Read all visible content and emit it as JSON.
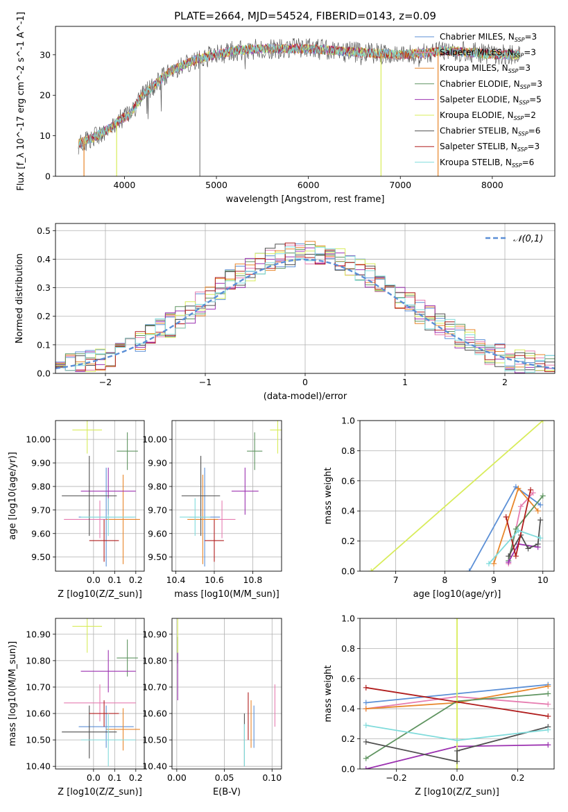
{
  "figure_title": "PLATE=2664, MJD=54524, FIBERID=0143, z=0.09",
  "colors": {
    "Chabrier MILES": "#5b8fd6",
    "Salpeter MILES": "#e67cb0",
    "Kroupa MILES": "#e8862a",
    "Chabrier ELODIE": "#5f9460",
    "Salpeter ELODIE": "#9b30b0",
    "Kroupa ELODIE": "#d8ec5a",
    "Chabrier STELIB": "#505050",
    "Salpeter STELIB": "#b01d1d",
    "Kroupa STELIB": "#7fdbdb",
    "normal": "#5b8fd6"
  },
  "chart_data": [
    {
      "id": "spectrum",
      "type": "line",
      "title": "PLATE=2664, MJD=54524, FIBERID=0143, z=0.09",
      "xlabel": "wavelength [Angstrom, rest frame]",
      "ylabel": "Flux [f_λ 10^-17 erg cm^-2 s^-1 A^-1]",
      "xlim": [
        3250,
        8680
      ],
      "ylim": [
        0,
        37
      ],
      "xticks": [
        4000,
        5000,
        6000,
        7000,
        8000
      ],
      "yticks": [
        0,
        10,
        20,
        30
      ],
      "legend_position": "upper right",
      "legend": [
        {
          "model": "Chabrier MILES",
          "n_ssp": 3
        },
        {
          "model": "Salpeter MILES",
          "n_ssp": 3
        },
        {
          "model": "Kroupa MILES",
          "n_ssp": 3
        },
        {
          "model": "Chabrier ELODIE",
          "n_ssp": 3
        },
        {
          "model": "Salpeter ELODIE",
          "n_ssp": 5
        },
        {
          "model": "Kroupa ELODIE",
          "n_ssp": 2
        },
        {
          "model": "Chabrier STELIB",
          "n_ssp": 6
        },
        {
          "model": "Salpeter STELIB",
          "n_ssp": 3
        },
        {
          "model": "Kroupa STELIB",
          "n_ssp": 6
        }
      ],
      "continuum": {
        "x": [
          3500,
          3700,
          3850,
          3950,
          4050,
          4200,
          4500,
          4800,
          5000,
          5200,
          5500,
          5800,
          6000,
          6300,
          6600,
          7000,
          7300,
          7500,
          7800,
          8000,
          8300
        ],
        "y": [
          8,
          10,
          12,
          14,
          15,
          20,
          26,
          29,
          30,
          31,
          31.5,
          31.5,
          31.5,
          31,
          30.5,
          30,
          30.5,
          31,
          30.5,
          30,
          30
        ]
      },
      "spikes": [
        {
          "x": 3915,
          "y": 0
        },
        {
          "x": 4820,
          "y": 0
        },
        {
          "x": 6790,
          "y": 0
        },
        {
          "x": 7410,
          "y": 0
        },
        {
          "x": 3560,
          "y": 0
        }
      ]
    },
    {
      "id": "residuals",
      "type": "histogram",
      "xlabel": "(data-model)/error",
      "ylabel": "Normed distribution",
      "xlim": [
        -2.5,
        2.5
      ],
      "ylim": [
        0,
        0.525
      ],
      "xticks": [
        -2,
        -1,
        0,
        1,
        2
      ],
      "yticks": [
        0.0,
        0.1,
        0.2,
        0.3,
        0.4,
        0.5
      ],
      "bin_width": 0.1,
      "reference": {
        "name": "𝒩(0,1)",
        "mean": 0,
        "sigma": 1
      },
      "grid": true,
      "legend_position": "upper right"
    },
    {
      "id": "age_vs_Z",
      "type": "errorbar",
      "xlabel": "Z [log10(Z/Z_sun)]",
      "ylabel": "age [log10(age/yr)]",
      "xlim": [
        -0.18,
        0.24
      ],
      "ylim": [
        9.44,
        10.08
      ],
      "xticks": [
        0.0,
        0.1,
        0.2
      ],
      "yticks": [
        9.5,
        9.6,
        9.7,
        9.8,
        9.9,
        10.0
      ],
      "points": [
        {
          "model": "Chabrier MILES",
          "x": 0.06,
          "xerr": 0.13,
          "y": 9.67,
          "yerr": 0.21
        },
        {
          "model": "Salpeter MILES",
          "x": 0.03,
          "xerr": 0.17,
          "y": 9.66,
          "yerr": 0.08
        },
        {
          "model": "Kroupa MILES",
          "x": 0.14,
          "xerr": 0.08,
          "y": 9.66,
          "yerr": 0.19
        },
        {
          "model": "Chabrier ELODIE",
          "x": 0.16,
          "xerr": 0.05,
          "y": 9.95,
          "yerr": 0.08
        },
        {
          "model": "Salpeter ELODIE",
          "x": 0.07,
          "xerr": 0.13,
          "y": 9.78,
          "yerr": 0.1
        },
        {
          "model": "Kroupa ELODIE",
          "x": -0.03,
          "xerr": 0.07,
          "y": 10.04,
          "yerr": 0.1
        },
        {
          "model": "Chabrier STELIB",
          "x": -0.02,
          "xerr": 0.13,
          "y": 9.76,
          "yerr": 0.17
        },
        {
          "model": "Salpeter STELIB",
          "x": 0.05,
          "xerr": 0.07,
          "y": 9.57,
          "yerr": 0.09
        },
        {
          "model": "Kroupa STELIB",
          "x": 0.07,
          "xerr": 0.13,
          "y": 9.67,
          "yerr": 0.08
        }
      ]
    },
    {
      "id": "age_vs_mass",
      "type": "errorbar",
      "xlabel": "mass [log10(M/M_sun)]",
      "xlim": [
        10.38,
        10.95
      ],
      "ylim": [
        9.44,
        10.08
      ],
      "xticks": [
        10.4,
        10.6,
        10.8
      ],
      "yticks": [
        9.5,
        9.6,
        9.7,
        9.8,
        9.9,
        10.0
      ],
      "points": [
        {
          "model": "Chabrier MILES",
          "x": 10.55,
          "xerr": 0.08,
          "y": 9.67,
          "yerr": 0.21
        },
        {
          "model": "Salpeter MILES",
          "x": 10.64,
          "xerr": 0.07,
          "y": 9.66,
          "yerr": 0.08
        },
        {
          "model": "Kroupa MILES",
          "x": 10.54,
          "xerr": 0.08,
          "y": 9.66,
          "yerr": 0.19
        },
        {
          "model": "Chabrier ELODIE",
          "x": 10.81,
          "xerr": 0.04,
          "y": 9.95,
          "yerr": 0.08
        },
        {
          "model": "Salpeter ELODIE",
          "x": 10.76,
          "xerr": 0.07,
          "y": 9.78,
          "yerr": 0.1
        },
        {
          "model": "Kroupa ELODIE",
          "x": 10.93,
          "xerr": 0.04,
          "y": 10.04,
          "yerr": 0.1
        },
        {
          "model": "Chabrier STELIB",
          "x": 10.53,
          "xerr": 0.1,
          "y": 9.76,
          "yerr": 0.17
        },
        {
          "model": "Salpeter STELIB",
          "x": 10.6,
          "xerr": 0.05,
          "y": 9.57,
          "yerr": 0.09
        },
        {
          "model": "Kroupa STELIB",
          "x": 10.5,
          "xerr": 0.08,
          "y": 9.67,
          "yerr": 0.08
        }
      ]
    },
    {
      "id": "weight_vs_age",
      "type": "line",
      "xlabel": "age [log10(age/yr)]",
      "ylabel": "mass weight",
      "xlim": [
        6.27,
        10.23
      ],
      "ylim": [
        0,
        1
      ],
      "xticks": [
        7,
        8,
        9,
        10
      ],
      "yticks": [
        0.0,
        0.2,
        0.4,
        0.6,
        0.8,
        1.0
      ],
      "series": [
        {
          "model": "Chabrier MILES",
          "x": [
            8.5,
            9.45,
            9.95
          ],
          "y": [
            0.0,
            0.56,
            0.44
          ]
        },
        {
          "model": "Salpeter MILES",
          "x": [
            9.3,
            9.55,
            9.8
          ],
          "y": [
            0.05,
            0.43,
            0.52
          ]
        },
        {
          "model": "Kroupa MILES",
          "x": [
            9.0,
            9.5,
            9.9
          ],
          "y": [
            0.05,
            0.55,
            0.4
          ]
        },
        {
          "model": "Chabrier ELODIE",
          "x": [
            9.3,
            9.45,
            10.0
          ],
          "y": [
            0.07,
            0.28,
            0.5
          ]
        },
        {
          "model": "Salpeter ELODIE",
          "x": [
            9.3,
            9.5,
            9.9
          ],
          "y": [
            0.06,
            0.18,
            0.16
          ]
        },
        {
          "model": "Kroupa ELODIE",
          "x": [
            6.5,
            10.0
          ],
          "y": [
            0.0,
            1.0
          ]
        },
        {
          "model": "Chabrier STELIB",
          "x": [
            9.3,
            9.55,
            9.7,
            9.9,
            9.95
          ],
          "y": [
            0.1,
            0.24,
            0.15,
            0.18,
            0.34
          ]
        },
        {
          "model": "Salpeter STELIB",
          "x": [
            9.25,
            9.45,
            9.75
          ],
          "y": [
            0.36,
            0.1,
            0.54
          ]
        },
        {
          "model": "Kroupa STELIB",
          "x": [
            8.9,
            9.5,
            9.95
          ],
          "y": [
            0.05,
            0.27,
            0.22
          ]
        }
      ]
    },
    {
      "id": "mass_vs_Z",
      "type": "errorbar",
      "xlabel": "Z [log10(Z/Z_sun)]",
      "ylabel": "mass [log10(M/M_sun)]",
      "xlim": [
        -0.18,
        0.24
      ],
      "ylim": [
        10.39,
        10.96
      ],
      "xticks": [
        0.0,
        0.1,
        0.2
      ],
      "yticks": [
        10.4,
        10.5,
        10.6,
        10.7,
        10.8,
        10.9
      ],
      "points": [
        {
          "model": "Chabrier MILES",
          "x": 0.06,
          "xerr": 0.13,
          "y": 10.55,
          "yerr": 0.08
        },
        {
          "model": "Salpeter MILES",
          "x": 0.03,
          "xerr": 0.17,
          "y": 10.64,
          "yerr": 0.07
        },
        {
          "model": "Kroupa MILES",
          "x": 0.14,
          "xerr": 0.08,
          "y": 10.54,
          "yerr": 0.08
        },
        {
          "model": "Chabrier ELODIE",
          "x": 0.16,
          "xerr": 0.05,
          "y": 10.81,
          "yerr": 0.07
        },
        {
          "model": "Salpeter ELODIE",
          "x": 0.07,
          "xerr": 0.13,
          "y": 10.76,
          "yerr": 0.08
        },
        {
          "model": "Kroupa ELODIE",
          "x": -0.03,
          "xerr": 0.07,
          "y": 10.93,
          "yerr": 0.1
        },
        {
          "model": "Chabrier STELIB",
          "x": -0.02,
          "xerr": 0.13,
          "y": 10.53,
          "yerr": 0.1
        },
        {
          "model": "Salpeter STELIB",
          "x": 0.05,
          "xerr": 0.07,
          "y": 10.6,
          "yerr": 0.05
        },
        {
          "model": "Kroupa STELIB",
          "x": 0.07,
          "xerr": 0.13,
          "y": 10.5,
          "yerr": 0.1
        }
      ]
    },
    {
      "id": "mass_vs_ebv",
      "type": "errorbar",
      "xlabel": "E(B-V)",
      "xlim": [
        -0.005,
        0.11
      ],
      "ylim": [
        10.39,
        10.96
      ],
      "xticks": [
        0.0,
        0.05,
        0.1
      ],
      "yticks": [
        10.4,
        10.5,
        10.6,
        10.7,
        10.8,
        10.9
      ],
      "points": [
        {
          "model": "Chabrier MILES",
          "x": 0.081,
          "y": 10.55,
          "yerr": 0.08
        },
        {
          "model": "Salpeter MILES",
          "x": 0.103,
          "y": 10.63,
          "yerr": 0.08
        },
        {
          "model": "Kroupa MILES",
          "x": 0.078,
          "y": 10.56,
          "yerr": 0.09
        },
        {
          "model": "Chabrier ELODIE",
          "x": 0.001,
          "y": 10.84,
          "yerr": 0.05
        },
        {
          "model": "Salpeter ELODIE",
          "x": 0.001,
          "y": 10.74,
          "yerr": 0.09
        },
        {
          "model": "Kroupa ELODIE",
          "x": 0.001,
          "y": 10.9,
          "yerr": 0.07
        },
        {
          "model": "Chabrier STELIB",
          "x": 0.071,
          "y": 10.5,
          "yerr": 0.1
        },
        {
          "model": "Salpeter STELIB",
          "x": 0.075,
          "y": 10.59,
          "yerr": 0.09
        },
        {
          "model": "Kroupa STELIB",
          "x": 0.071,
          "y": 10.48,
          "yerr": 0.08
        }
      ]
    },
    {
      "id": "weight_vs_Z",
      "type": "line",
      "xlabel": "Z [log10(Z/Z_sun)]",
      "ylabel": "mass weight",
      "xlim": [
        -0.32,
        0.32
      ],
      "ylim": [
        0,
        1
      ],
      "xticks": [
        -0.2,
        0.0,
        0.2
      ],
      "yticks": [
        0.0,
        0.2,
        0.4,
        0.6,
        0.8,
        1.0
      ],
      "series": [
        {
          "model": "Chabrier MILES",
          "x": [
            -0.3,
            0.0,
            0.3
          ],
          "y": [
            0.44,
            0.5,
            0.56
          ]
        },
        {
          "model": "Salpeter MILES",
          "x": [
            -0.3,
            0.0,
            0.3
          ],
          "y": [
            0.4,
            0.48,
            0.43
          ]
        },
        {
          "model": "Kroupa MILES",
          "x": [
            -0.3,
            0.0,
            0.3
          ],
          "y": [
            0.4,
            0.44,
            0.55
          ]
        },
        {
          "model": "Chabrier ELODIE",
          "x": [
            -0.3,
            0.0,
            0.3
          ],
          "y": [
            0.07,
            0.45,
            0.5
          ]
        },
        {
          "model": "Salpeter ELODIE",
          "x": [
            -0.3,
            0.0,
            0.3
          ],
          "y": [
            0.0,
            0.15,
            0.16
          ]
        },
        {
          "model": "Kroupa ELODIE",
          "x": [
            0.0,
            0.0
          ],
          "y": [
            0.0,
            1.0
          ]
        },
        {
          "model": "Chabrier STELIB",
          "x": [
            -0.3,
            0.0,
            0.0,
            0.3
          ],
          "y": [
            0.18,
            0.05,
            0.12,
            0.28
          ]
        },
        {
          "model": "Salpeter STELIB",
          "x": [
            -0.3,
            0.3
          ],
          "y": [
            0.54,
            0.35
          ]
        },
        {
          "model": "Kroupa STELIB",
          "x": [
            -0.3,
            0.0,
            0.3
          ],
          "y": [
            0.29,
            0.19,
            0.26
          ]
        }
      ]
    }
  ]
}
